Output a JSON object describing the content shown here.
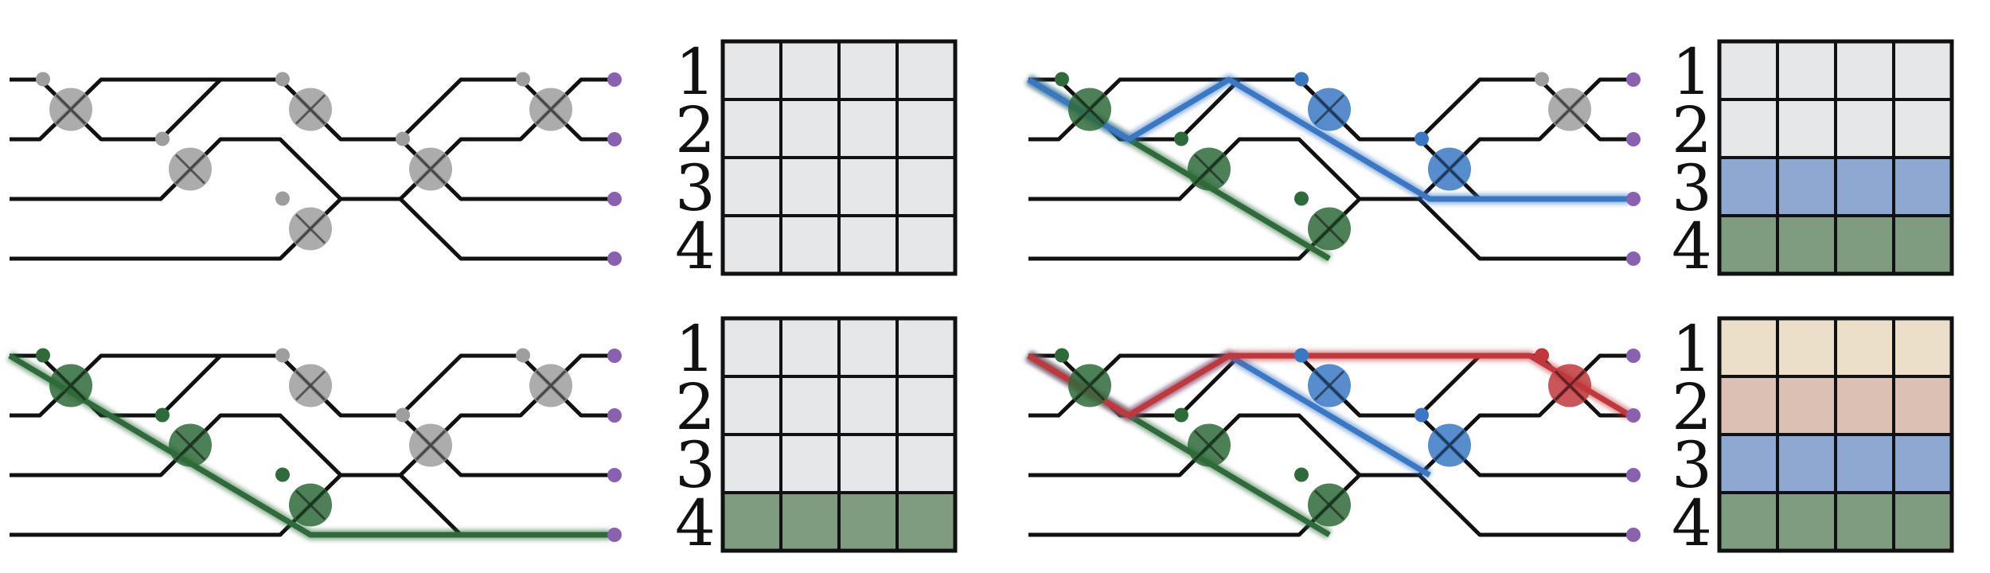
{
  "colors": {
    "wire": "#111111",
    "empty": "#e6e7e9",
    "green": "#2f6a3a",
    "green_fill": "#7f9b80",
    "blue": "#3a78c4",
    "blue_fill": "#8fa8d2",
    "red": "#c0383d",
    "pink_fill": "#dcc0b4",
    "tan_fill": "#ecdfca",
    "node_gray": "#9e9e9e",
    "port": "#8a60b0"
  },
  "row_labels": [
    "1",
    "2",
    "3",
    "4"
  ],
  "panels": [
    {
      "id": "top-left",
      "icon": "gray-mesh",
      "paths": [],
      "grid_rows": [
        "empty",
        "empty",
        "empty",
        "empty"
      ]
    },
    {
      "id": "top-right",
      "icon": "blue-mesh",
      "paths": [
        {
          "color": "green",
          "route": [
            [
              0,
              0
            ],
            [
              1,
              1
            ],
            [
              2,
              2
            ],
            [
              3,
              3
            ]
          ]
        },
        {
          "color": "blue",
          "route": [
            [
              0,
              0
            ],
            [
              1,
              1
            ],
            [
              2,
              0
            ],
            [
              3,
              1
            ],
            [
              4,
              2
            ],
            [
              5,
              2
            ],
            [
              6,
              2
            ]
          ]
        }
      ],
      "grid_rows": [
        "empty",
        "empty",
        "blue_fill",
        "green_fill"
      ]
    },
    {
      "id": "bottom-left",
      "icon": "green-mesh",
      "paths": [
        {
          "color": "green",
          "route": [
            [
              0,
              0
            ],
            [
              1,
              1
            ],
            [
              2,
              2
            ],
            [
              3,
              3
            ],
            [
              4,
              3
            ],
            [
              5,
              3
            ],
            [
              6,
              3
            ]
          ]
        }
      ],
      "grid_rows": [
        "empty",
        "empty",
        "empty",
        "green_fill"
      ]
    },
    {
      "id": "bottom-right",
      "icon": "red-mesh",
      "paths": [
        {
          "color": "green",
          "route": [
            [
              0,
              0
            ],
            [
              1,
              1
            ],
            [
              2,
              2
            ],
            [
              3,
              3
            ]
          ]
        },
        {
          "color": "blue",
          "route": [
            [
              0,
              0
            ],
            [
              1,
              1
            ],
            [
              2,
              0
            ],
            [
              3,
              1
            ],
            [
              4,
              2
            ]
          ]
        },
        {
          "color": "red",
          "route": [
            [
              0,
              0
            ],
            [
              1,
              1
            ],
            [
              2,
              0
            ],
            [
              3,
              0
            ],
            [
              4,
              0
            ],
            [
              5,
              0
            ],
            [
              6,
              1
            ]
          ]
        }
      ],
      "grid_rows": [
        "tan_fill",
        "pink_fill",
        "blue_fill",
        "green_fill"
      ]
    }
  ]
}
